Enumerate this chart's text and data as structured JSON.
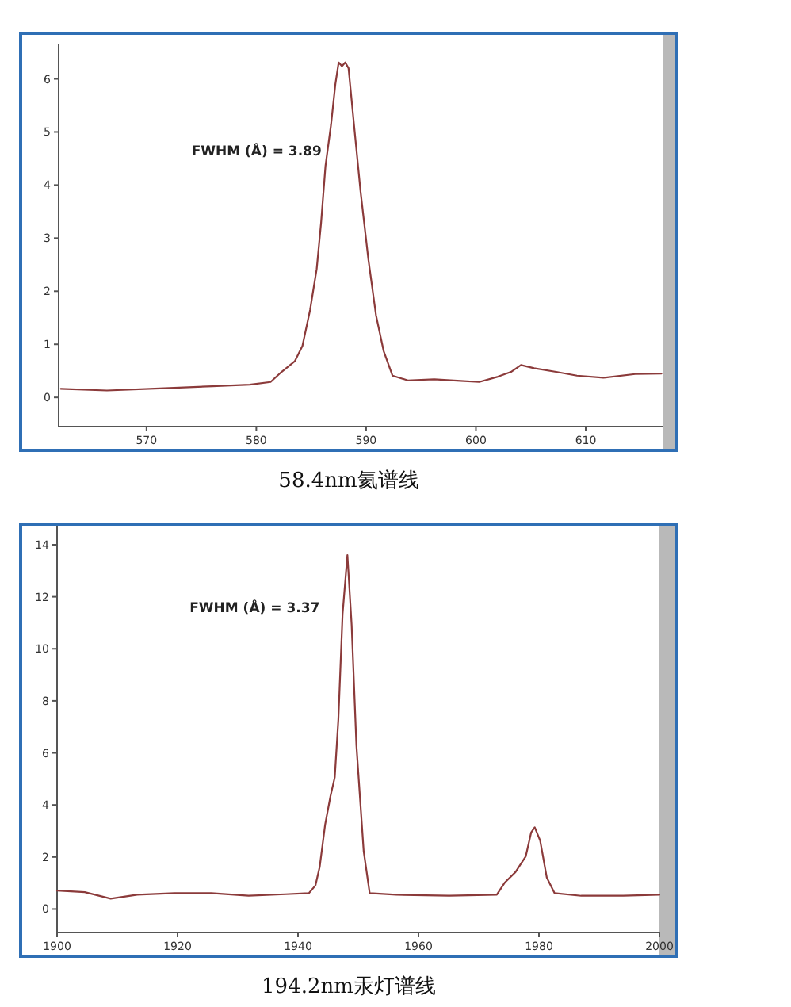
{
  "chart_data": [
    {
      "type": "line",
      "title": "58.4nm氦谱线",
      "annotations": [
        "FWHM (Å) = 3.89"
      ],
      "xlim": [
        562,
        617
      ],
      "ylim": [
        -0.55,
        6.65
      ],
      "xticks": [
        570,
        580,
        590,
        600,
        610
      ],
      "yticks": [
        0,
        1,
        2,
        3,
        4,
        5,
        6
      ],
      "series": [
        {
          "color": "#8b3a3a",
          "x": [
            562.2,
            566.4,
            571.2,
            576.0,
            579.4,
            581.3,
            582.3,
            583.5,
            584.2,
            584.9,
            585.5,
            585.9,
            586.3,
            586.8,
            587.2,
            587.5,
            587.8,
            588.1,
            588.4,
            588.9,
            589.5,
            590.2,
            590.9,
            591.6,
            592.4,
            593.8,
            596.2,
            598.6,
            600.3,
            602.0,
            603.2,
            604.1,
            605.3,
            607.3,
            609.2,
            611.6,
            614.5,
            616.9
          ],
          "values": [
            0.16,
            0.13,
            0.17,
            0.21,
            0.24,
            0.29,
            0.48,
            0.68,
            0.97,
            1.65,
            2.42,
            3.29,
            4.36,
            5.13,
            5.9,
            6.31,
            6.24,
            6.31,
            6.2,
            5.13,
            3.87,
            2.61,
            1.55,
            0.87,
            0.41,
            0.32,
            0.34,
            0.31,
            0.29,
            0.39,
            0.48,
            0.61,
            0.55,
            0.48,
            0.41,
            0.37,
            0.44,
            0.45
          ]
        }
      ]
    },
    {
      "type": "line",
      "title": "194.2nm汞灯谱线",
      "annotations": [
        "FWHM (Å) = 3.37"
      ],
      "xlim": [
        1900,
        2000
      ],
      "ylim": [
        -0.9,
        14.7
      ],
      "xticks": [
        1900,
        1920,
        1940,
        1960,
        1980,
        2000
      ],
      "yticks": [
        0,
        2,
        4,
        6,
        8,
        10,
        12,
        14
      ],
      "series": [
        {
          "color": "#8b3a3a",
          "x": [
            1900,
            1904.6,
            1908.9,
            1913.3,
            1919.5,
            1925.6,
            1931.8,
            1937.9,
            1941.8,
            1942.9,
            1943.6,
            1944.5,
            1945.4,
            1946.1,
            1946.7,
            1947.4,
            1948.2,
            1948.9,
            1949.7,
            1950.9,
            1951.9,
            1956.3,
            1965.1,
            1973.0,
            1974.3,
            1976.1,
            1977.8,
            1978.7,
            1979.3,
            1980.2,
            1981.3,
            1982.6,
            1987.0,
            1994.0,
            2000
          ],
          "values": [
            0.71,
            0.65,
            0.4,
            0.55,
            0.61,
            0.61,
            0.51,
            0.57,
            0.61,
            0.91,
            1.62,
            3.24,
            4.35,
            5.06,
            7.29,
            11.34,
            13.6,
            10.93,
            6.28,
            2.23,
            0.61,
            0.55,
            0.51,
            0.55,
            1.01,
            1.42,
            2.02,
            2.94,
            3.14,
            2.63,
            1.21,
            0.61,
            0.51,
            0.51,
            0.55
          ]
        }
      ]
    }
  ]
}
